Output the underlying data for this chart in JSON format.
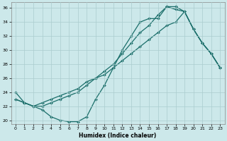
{
  "xlabel": "Humidex (Indice chaleur)",
  "xlim": [
    -0.5,
    23.5
  ],
  "ylim": [
    19.5,
    36.8
  ],
  "xticks": [
    0,
    1,
    2,
    3,
    4,
    5,
    6,
    7,
    8,
    9,
    10,
    11,
    12,
    13,
    14,
    15,
    16,
    17,
    18,
    19,
    20,
    21,
    22,
    23
  ],
  "yticks": [
    20,
    22,
    24,
    26,
    28,
    30,
    32,
    34,
    36
  ],
  "background_color": "#cce8ea",
  "grid_color": "#aaccce",
  "line_color": "#1a6e6a",
  "curve1_x": [
    0,
    1,
    2,
    3,
    4,
    5,
    6,
    7,
    8,
    9,
    10,
    11,
    12,
    13,
    14,
    15,
    16,
    17,
    18,
    19,
    20,
    21,
    22,
    23
  ],
  "curve1_y": [
    24.0,
    22.5,
    22.0,
    21.5,
    20.5,
    20.0,
    19.8,
    19.8,
    20.5,
    23.0,
    25.0,
    27.5,
    30.0,
    32.0,
    34.0,
    34.5,
    34.5,
    36.2,
    36.2,
    35.5,
    33.0,
    31.0,
    29.5,
    27.5
  ],
  "curve2_x": [
    0,
    1,
    2,
    3,
    4,
    5,
    6,
    7,
    8,
    9,
    10,
    11,
    12,
    13,
    14,
    15,
    16,
    17,
    18,
    19,
    20,
    21,
    22,
    23
  ],
  "curve2_y": [
    23.0,
    22.5,
    22.0,
    22.0,
    22.5,
    23.0,
    23.5,
    24.0,
    25.0,
    26.0,
    27.0,
    28.0,
    29.5,
    31.0,
    32.5,
    33.5,
    35.0,
    36.2,
    35.8,
    35.5,
    33.0,
    31.0,
    29.5,
    27.5
  ],
  "curve3_x": [
    0,
    1,
    2,
    3,
    4,
    5,
    6,
    7,
    8,
    9,
    10,
    11,
    12,
    13,
    14,
    15,
    16,
    17,
    18,
    19,
    20,
    21,
    22,
    23
  ],
  "curve3_y": [
    23.0,
    22.5,
    22.0,
    22.5,
    23.0,
    23.5,
    24.0,
    24.5,
    25.5,
    26.0,
    26.5,
    27.5,
    28.5,
    29.5,
    30.5,
    31.5,
    32.5,
    33.5,
    34.0,
    35.5,
    33.0,
    31.0,
    29.5,
    27.5
  ]
}
